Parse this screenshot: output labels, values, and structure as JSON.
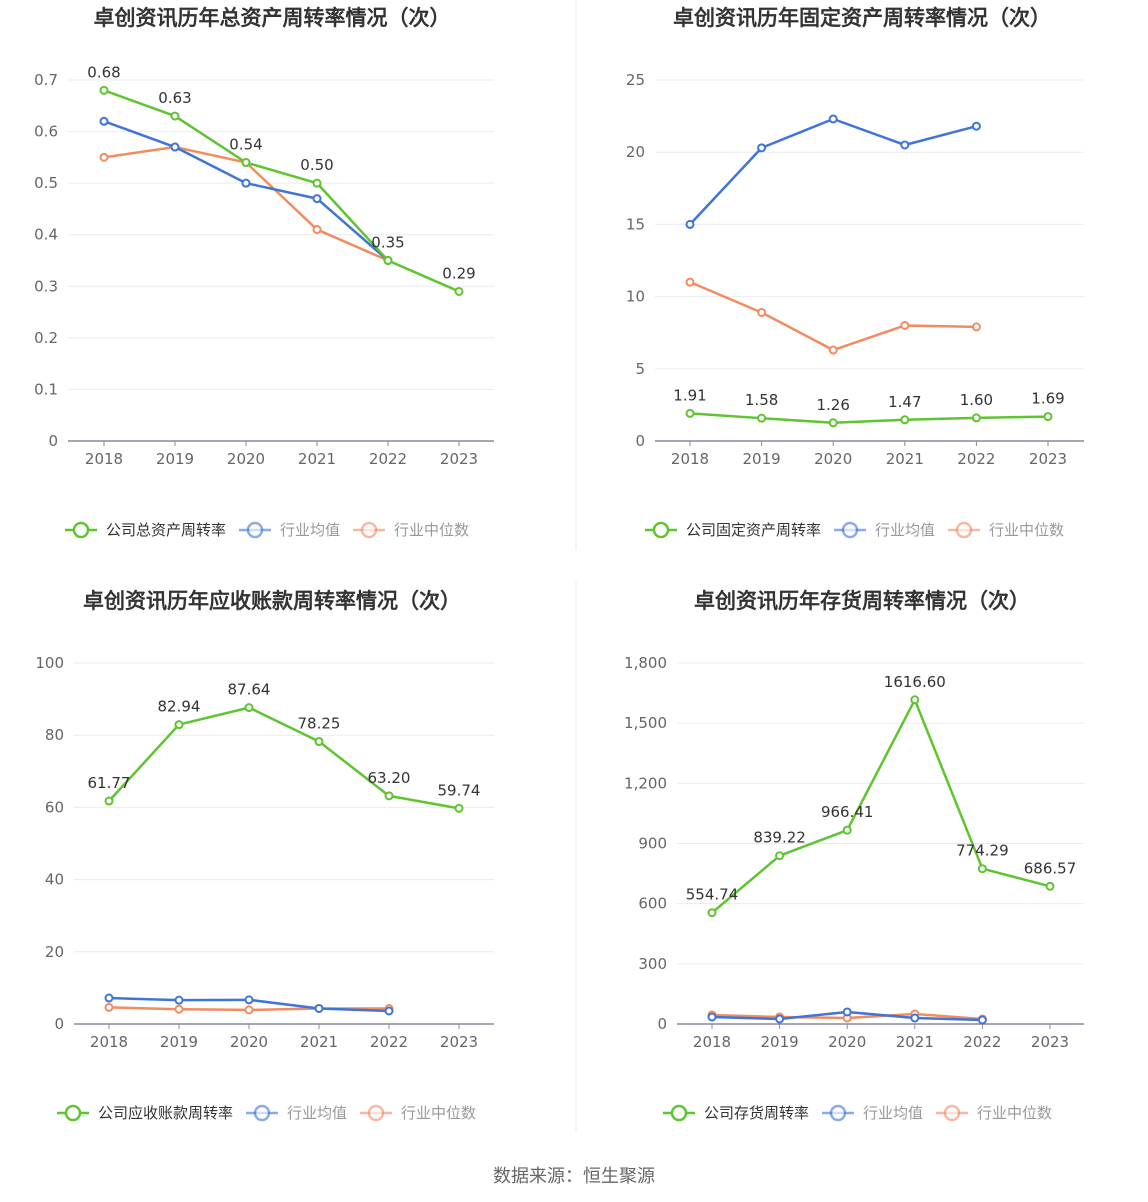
{
  "colors": {
    "company": "#5ec42f",
    "avg": "#3f74d9",
    "median": "#f28c60"
  },
  "footer": {
    "source": "数据来源：恒生聚源"
  },
  "chart_data": [
    {
      "type": "line",
      "title": "卓创资讯历年总资产周转率情况（次）",
      "categories": [
        "2018",
        "2019",
        "2020",
        "2021",
        "2022",
        "2023"
      ],
      "ylim": [
        0,
        0.7
      ],
      "yticks": [
        "0",
        "0.1",
        "0.2",
        "0.3",
        "0.4",
        "0.5",
        "0.6",
        "0.7"
      ],
      "yticks_values": [
        0,
        0.1,
        0.2,
        0.3,
        0.4,
        0.5,
        0.6,
        0.7
      ],
      "legend_position": "bottom",
      "grid": true,
      "series": [
        {
          "name": "公司总资产周转率",
          "role": "company",
          "values": [
            0.68,
            0.63,
            0.54,
            0.5,
            0.35,
            0.29
          ],
          "labels": [
            "0.68",
            "0.63",
            "0.54",
            "0.50",
            "0.35",
            "0.29"
          ]
        },
        {
          "name": "行业均值",
          "role": "avg",
          "values": [
            0.62,
            0.57,
            0.5,
            0.47,
            0.35,
            null
          ]
        },
        {
          "name": "行业中位数",
          "role": "median",
          "values": [
            0.55,
            0.57,
            0.54,
            0.41,
            0.35,
            null
          ]
        }
      ]
    },
    {
      "type": "line",
      "title": "卓创资讯历年固定资产周转率情况（次）",
      "categories": [
        "2018",
        "2019",
        "2020",
        "2021",
        "2022",
        "2023"
      ],
      "ylim": [
        0,
        25
      ],
      "yticks": [
        "0",
        "5",
        "10",
        "15",
        "20",
        "25"
      ],
      "yticks_values": [
        0,
        5,
        10,
        15,
        20,
        25
      ],
      "legend_position": "bottom",
      "grid": true,
      "series": [
        {
          "name": "公司固定资产周转率",
          "role": "company",
          "values": [
            1.91,
            1.58,
            1.26,
            1.47,
            1.6,
            1.69
          ],
          "labels": [
            "1.91",
            "1.58",
            "1.26",
            "1.47",
            "1.60",
            "1.69"
          ]
        },
        {
          "name": "行业均值",
          "role": "avg",
          "values": [
            15.0,
            20.3,
            22.3,
            20.5,
            21.8,
            null
          ]
        },
        {
          "name": "行业中位数",
          "role": "median",
          "values": [
            11.0,
            8.9,
            6.3,
            8.0,
            7.9,
            null
          ]
        }
      ]
    },
    {
      "type": "line",
      "title": "卓创资讯历年应收账款周转率情况（次）",
      "categories": [
        "2018",
        "2019",
        "2020",
        "2021",
        "2022",
        "2023"
      ],
      "ylim": [
        0,
        100
      ],
      "yticks": [
        "0",
        "20",
        "40",
        "60",
        "80",
        "100"
      ],
      "yticks_values": [
        0,
        20,
        40,
        60,
        80,
        100
      ],
      "legend_position": "bottom",
      "grid": true,
      "series": [
        {
          "name": "公司应收账款周转率",
          "role": "company",
          "values": [
            61.77,
            82.94,
            87.64,
            78.25,
            63.2,
            59.74
          ],
          "labels": [
            "61.77",
            "82.94",
            "87.64",
            "78.25",
            "63.20",
            "59.74"
          ]
        },
        {
          "name": "行业均值",
          "role": "avg",
          "values": [
            7.2,
            6.6,
            6.7,
            4.3,
            3.6,
            null
          ]
        },
        {
          "name": "行业中位数",
          "role": "median",
          "values": [
            4.6,
            4.1,
            3.9,
            4.3,
            4.3,
            null
          ]
        }
      ]
    },
    {
      "type": "line",
      "title": "卓创资讯历年存货周转率情况（次）",
      "categories": [
        "2018",
        "2019",
        "2020",
        "2021",
        "2022",
        "2023"
      ],
      "ylim": [
        0,
        1800
      ],
      "yticks": [
        "0",
        "300",
        "600",
        "900",
        "1,200",
        "1,500",
        "1,800"
      ],
      "yticks_values": [
        0,
        300,
        600,
        900,
        1200,
        1500,
        1800
      ],
      "legend_position": "bottom",
      "grid": true,
      "series": [
        {
          "name": "公司存货周转率",
          "role": "company",
          "values": [
            554.74,
            839.22,
            966.41,
            1616.6,
            774.29,
            686.57
          ],
          "labels": [
            "554.74",
            "839.22",
            "966.41",
            "1616.60",
            "774.29",
            "686.57"
          ]
        },
        {
          "name": "行业均值",
          "role": "avg",
          "values": [
            35,
            25,
            60,
            30,
            20,
            null
          ]
        },
        {
          "name": "行业中位数",
          "role": "median",
          "values": [
            45,
            35,
            30,
            50,
            25,
            null
          ]
        }
      ]
    }
  ]
}
